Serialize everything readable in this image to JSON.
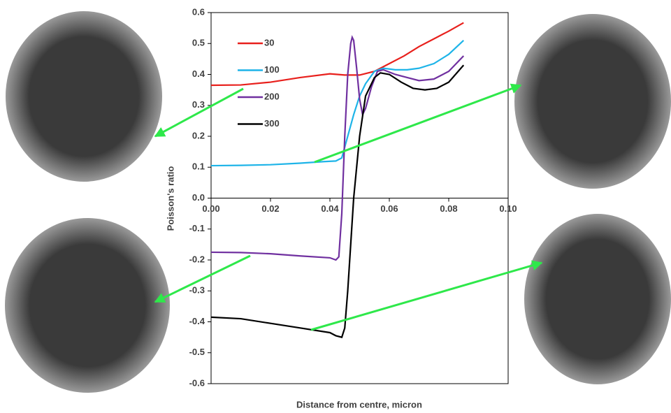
{
  "chart_data": {
    "type": "line",
    "xlabel": "Distance from centre, micron",
    "ylabel": "Poisson's ratio",
    "xlim": [
      0,
      0.1
    ],
    "ylim": [
      -0.6,
      0.6
    ],
    "xticks": [
      {
        "value": 0,
        "label": "0.00"
      },
      {
        "value": 0.02,
        "label": "0.02"
      },
      {
        "value": 0.04,
        "label": "0.04"
      },
      {
        "value": 0.06,
        "label": "0.06"
      },
      {
        "value": 0.08,
        "label": "0.08"
      },
      {
        "value": 0.1,
        "label": "0.10"
      }
    ],
    "yticks": [
      -0.6,
      -0.5,
      -0.4,
      -0.3,
      -0.2,
      -0.1,
      {
        "value": 0,
        "label": "0.0"
      },
      0.1,
      0.2,
      0.3,
      0.4,
      0.5,
      0.6
    ],
    "series": [
      {
        "name": "30",
        "color": "#e8201c",
        "x": [
          0,
          0.01,
          0.02,
          0.03,
          0.04,
          0.045,
          0.05,
          0.055,
          0.06,
          0.065,
          0.07,
          0.075,
          0.08,
          0.085
        ],
        "values": [
          0.365,
          0.366,
          0.375,
          0.39,
          0.402,
          0.398,
          0.398,
          0.41,
          0.435,
          0.46,
          0.49,
          0.515,
          0.54,
          0.567
        ]
      },
      {
        "name": "100",
        "color": "#1eb4e8",
        "x": [
          0,
          0.01,
          0.02,
          0.03,
          0.038,
          0.042,
          0.044,
          0.046,
          0.048,
          0.05,
          0.052,
          0.055,
          0.058,
          0.062,
          0.066,
          0.07,
          0.075,
          0.08,
          0.085
        ],
        "values": [
          0.105,
          0.106,
          0.108,
          0.113,
          0.118,
          0.12,
          0.13,
          0.2,
          0.27,
          0.33,
          0.37,
          0.41,
          0.42,
          0.415,
          0.415,
          0.42,
          0.435,
          0.465,
          0.51
        ]
      },
      {
        "name": "200",
        "color": "#7030a0",
        "x": [
          0,
          0.01,
          0.02,
          0.03,
          0.04,
          0.042,
          0.043,
          0.044,
          0.045,
          0.046,
          0.047,
          0.0475,
          0.048,
          0.049,
          0.05,
          0.051,
          0.052,
          0.054,
          0.056,
          0.058,
          0.062,
          0.066,
          0.07,
          0.075,
          0.08,
          0.085
        ],
        "values": [
          -0.175,
          -0.176,
          -0.18,
          -0.187,
          -0.193,
          -0.2,
          -0.19,
          -0.05,
          0.2,
          0.4,
          0.5,
          0.52,
          0.51,
          0.42,
          0.32,
          0.27,
          0.29,
          0.36,
          0.41,
          0.415,
          0.4,
          0.39,
          0.38,
          0.385,
          0.41,
          0.46
        ]
      },
      {
        "name": "300",
        "color": "#000000",
        "x": [
          0,
          0.01,
          0.02,
          0.03,
          0.04,
          0.042,
          0.044,
          0.045,
          0.046,
          0.047,
          0.048,
          0.049,
          0.05,
          0.052,
          0.055,
          0.057,
          0.06,
          0.064,
          0.068,
          0.072,
          0.076,
          0.08,
          0.085
        ],
        "values": [
          -0.385,
          -0.39,
          -0.405,
          -0.42,
          -0.435,
          -0.445,
          -0.45,
          -0.42,
          -0.3,
          -0.15,
          0.0,
          0.1,
          0.2,
          0.33,
          0.39,
          0.405,
          0.4,
          0.375,
          0.355,
          0.35,
          0.355,
          0.375,
          0.43
        ]
      }
    ]
  }
}
